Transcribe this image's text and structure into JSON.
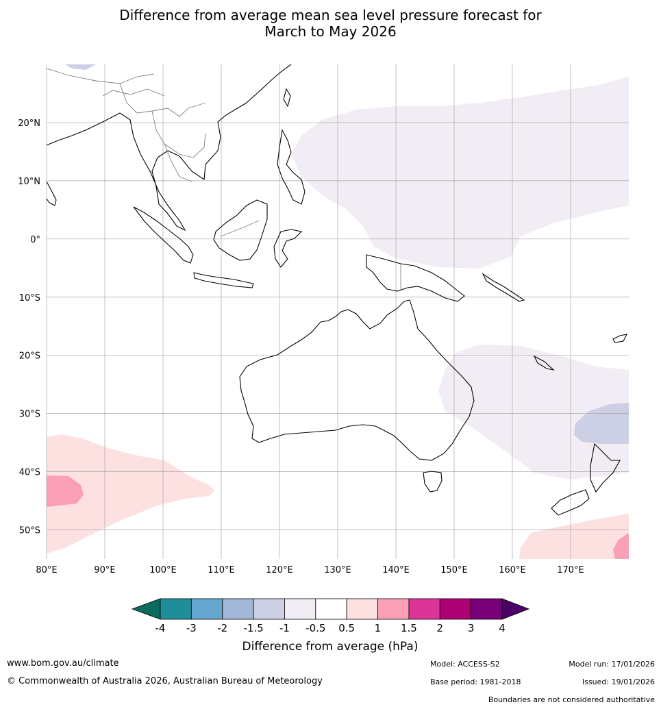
{
  "title": {
    "line1": "Difference from average mean sea level pressure forecast for",
    "line2": "March to May 2026"
  },
  "map": {
    "lat_labels": [
      "20°N",
      "10°N",
      "0°",
      "10°S",
      "20°S",
      "30°S",
      "40°S",
      "50°S"
    ],
    "lon_labels": [
      "80°E",
      "90°E",
      "100°E",
      "110°E",
      "120°E",
      "130°E",
      "140°E",
      "150°E",
      "160°E",
      "170°E"
    ],
    "lat_values": [
      20,
      10,
      0,
      -10,
      -20,
      -30,
      -40,
      -50
    ],
    "lon_values": [
      80,
      90,
      100,
      110,
      120,
      130,
      140,
      150,
      160,
      170
    ],
    "extent": {
      "lon_min": 80,
      "lon_max": 180,
      "lat_min": -55,
      "lat_max": 30
    }
  },
  "legend": {
    "title": "Difference from average (hPa)",
    "tick_labels": [
      "-4",
      "-3",
      "-2",
      "-1.5",
      "-1",
      "-0.5",
      "0.5",
      "1",
      "1.5",
      "2",
      "3",
      "4"
    ],
    "colors": {
      "below_min": "#0b6b5e",
      "bins": [
        "#1e8f9a",
        "#67a8d0",
        "#a2b6d8",
        "#cdcfe5",
        "#f2ecf5",
        "#ffffff",
        "#fde0e0",
        "#f99fb8",
        "#dc3399",
        "#ad0075",
        "#7a007a"
      ],
      "above_max": "#4a0066"
    }
  },
  "footer": {
    "website": "www.bom.gov.au/climate",
    "copyright": "© Commonwealth of Australia 2026, Australian Bureau of Meteorology",
    "model": "Model: ACCESS-S2",
    "base_period": "Base period: 1981-2018",
    "model_run": "Model run: 17/01/2026",
    "issued": "Issued: 19/01/2026",
    "disclaimer": "Boundaries are not considered authoritative"
  }
}
